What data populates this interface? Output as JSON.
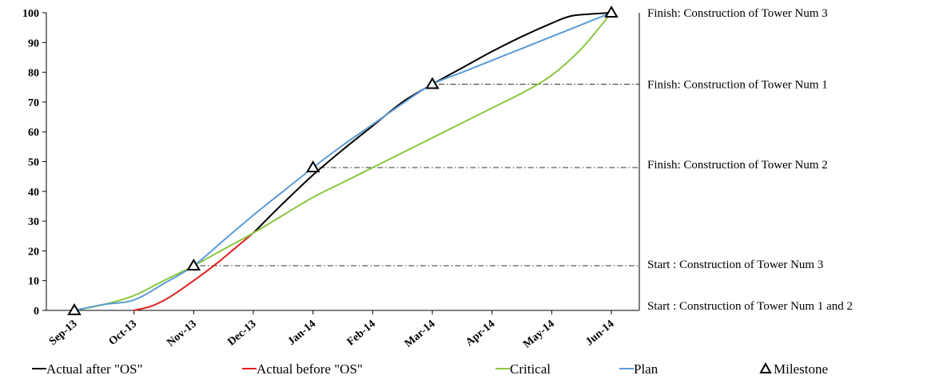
{
  "chart_data": {
    "type": "line",
    "title": "",
    "xlabel": "",
    "ylabel": "",
    "ylim": [
      0,
      100
    ],
    "y_ticks": [
      "0",
      "10",
      "20",
      "30",
      "40",
      "50",
      "60",
      "70",
      "80",
      "90",
      "100"
    ],
    "categories": [
      "Sep-13",
      "Oct-13",
      "Nov-13",
      "Dec-13",
      "Jan-14",
      "Feb-14",
      "Mar-14",
      "Apr-14",
      "May-14",
      "Jun-14"
    ],
    "grid": false,
    "legend_position": "bottom",
    "series": [
      {
        "name": "Actual after \"OS\"",
        "color": "#000000",
        "points": [
          [
            3.0,
            26
          ],
          [
            3.5,
            36
          ],
          [
            4.0,
            45.5
          ],
          [
            4.5,
            54
          ],
          [
            5.0,
            62
          ],
          [
            5.5,
            70
          ],
          [
            6.0,
            76
          ],
          [
            6.5,
            81.5
          ],
          [
            7.0,
            87
          ],
          [
            7.5,
            92
          ],
          [
            8.0,
            96.5
          ],
          [
            8.3,
            98.8
          ],
          [
            8.6,
            99.5
          ],
          [
            9.0,
            100
          ]
        ]
      },
      {
        "name": "Actual before \"OS\"",
        "color": "#e02020",
        "points": [
          [
            1.0,
            0
          ],
          [
            1.3,
            1.5
          ],
          [
            1.6,
            4.5
          ],
          [
            2.0,
            10
          ],
          [
            2.4,
            16
          ],
          [
            2.7,
            21
          ],
          [
            3.0,
            26
          ]
        ]
      },
      {
        "name": "Critical",
        "color": "#8cc63f",
        "points": [
          [
            0.0,
            0
          ],
          [
            0.5,
            2
          ],
          [
            1.0,
            5
          ],
          [
            1.5,
            10
          ],
          [
            2.0,
            15
          ],
          [
            2.5,
            20.5
          ],
          [
            3.0,
            26
          ],
          [
            3.5,
            32
          ],
          [
            4.0,
            38
          ],
          [
            4.5,
            43
          ],
          [
            5.0,
            48
          ],
          [
            5.5,
            53
          ],
          [
            6.0,
            58
          ],
          [
            6.5,
            63
          ],
          [
            7.0,
            68
          ],
          [
            7.5,
            73
          ],
          [
            8.0,
            79
          ],
          [
            8.5,
            88
          ],
          [
            9.0,
            100
          ]
        ]
      },
      {
        "name": "Plan",
        "color": "#5b9bd5",
        "points": [
          [
            0.0,
            0
          ],
          [
            0.5,
            2
          ],
          [
            1.0,
            3.5
          ],
          [
            1.5,
            9
          ],
          [
            2.0,
            15
          ],
          [
            2.5,
            23.5
          ],
          [
            3.0,
            32
          ],
          [
            3.5,
            40
          ],
          [
            4.0,
            48
          ],
          [
            4.5,
            55.5
          ],
          [
            5.0,
            62.5
          ],
          [
            5.5,
            69.5
          ],
          [
            6.0,
            76
          ],
          [
            6.5,
            80
          ],
          [
            7.0,
            84
          ],
          [
            7.5,
            88
          ],
          [
            8.0,
            92
          ],
          [
            8.5,
            96
          ],
          [
            9.0,
            100
          ]
        ]
      }
    ],
    "milestones": {
      "name": "Milestone",
      "points": [
        [
          0.0,
          0
        ],
        [
          2.0,
          15
        ],
        [
          4.0,
          48
        ],
        [
          6.0,
          76
        ],
        [
          9.0,
          100
        ]
      ]
    },
    "annotations": [
      {
        "text": "Finish:  Construction  of  Tower  Num  3",
        "y": 100
      },
      {
        "text": "Finish:  Construction  of  Tower  Num  1",
        "y": 76
      },
      {
        "text": "Finish:  Construction  of  Tower  Num  2",
        "y": 49
      },
      {
        "text": "Start :  Construction  of  Tower   Num  3",
        "y": 15.5
      },
      {
        "text": "Start :  Construction  of  Tower  Num  1 and 2",
        "y": 0
      }
    ],
    "legend": [
      {
        "label": "Actual after \"OS\"",
        "color": "#000000",
        "kind": "line"
      },
      {
        "label": "Actual before \"OS\"",
        "color": "#e02020",
        "kind": "line"
      },
      {
        "label": "Critical",
        "color": "#8cc63f",
        "kind": "line"
      },
      {
        "label": "Plan",
        "color": "#5b9bd5",
        "kind": "line"
      },
      {
        "label": "Milestone",
        "color": "#000000",
        "kind": "triangle"
      }
    ]
  }
}
